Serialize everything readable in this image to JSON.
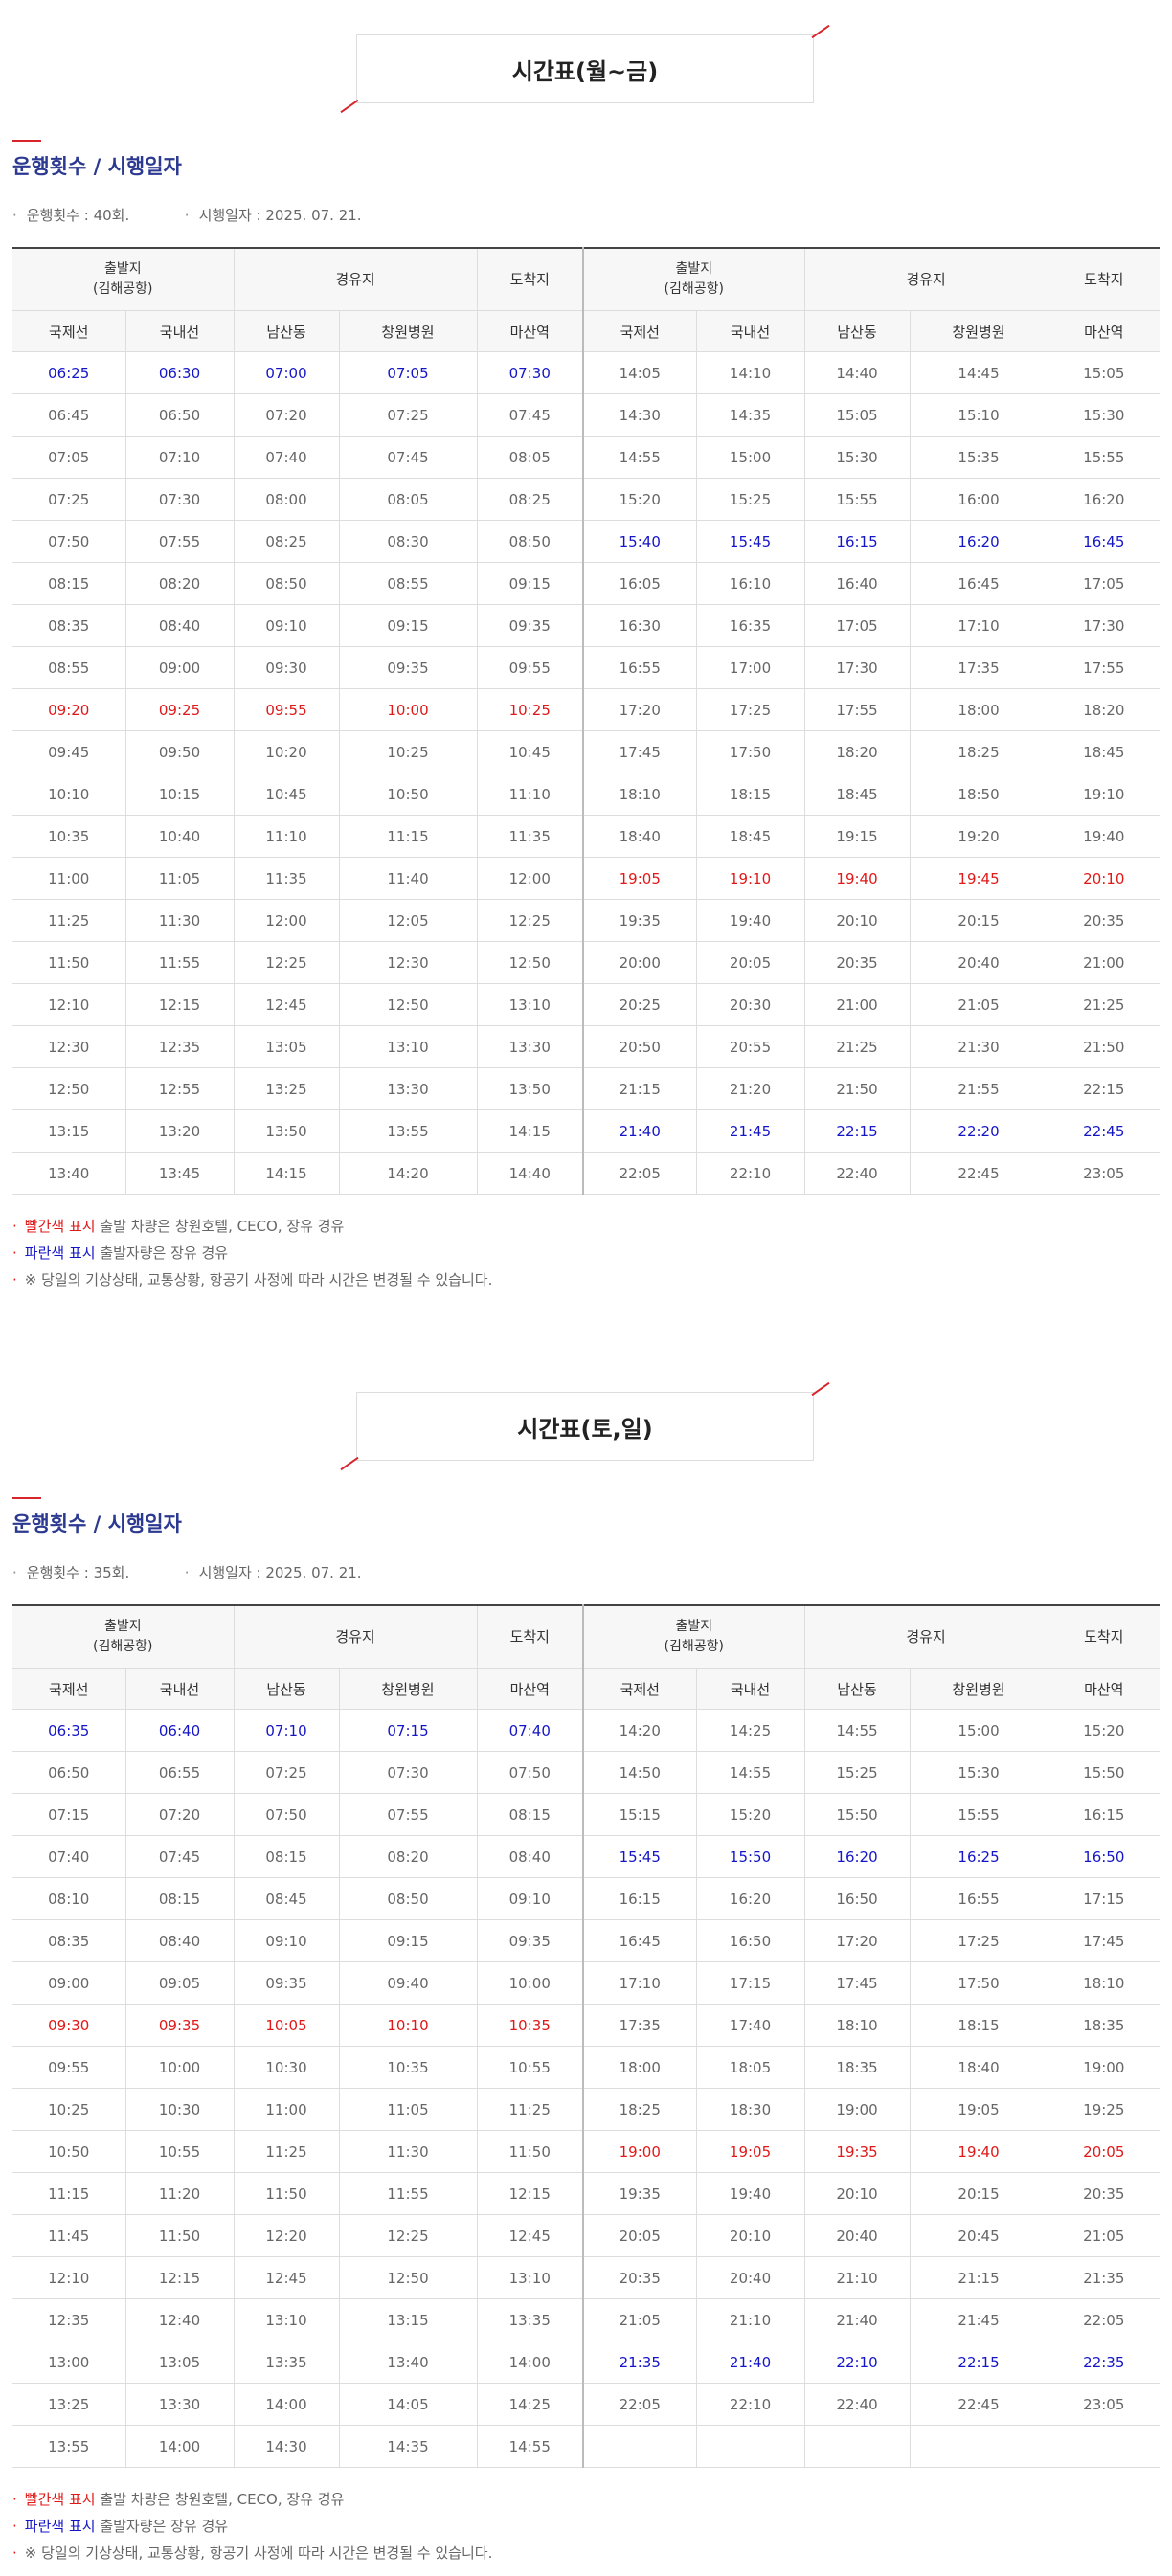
{
  "common": {
    "section_subtitle": "운행횟수 / 시행일자",
    "header_top": [
      "출발지\n(김해공항)",
      "경유지",
      "도착지",
      "출발지\n(김해공항)",
      "경유지",
      "도착지"
    ],
    "header_cols": [
      "국제선",
      "국내선",
      "남산동",
      "창원병원",
      "마산역",
      "국제선",
      "국내선",
      "남산동",
      "창원병원",
      "마산역"
    ],
    "note_red_label": "빨간색 표시",
    "note_red_text": " 출발 차량은 창원호텔, CECO, 장유 경유",
    "note_blue_label": "파란색 표시",
    "note_blue_text": " 출발자량은 장유 경유",
    "note_warn": "※ 당일의 기상상태, 교통상황, 항공기 사정에 따라 시간은 변경될 수 있습니다.",
    "colors": {
      "red": "#e01818",
      "blue": "#1515c8",
      "accent": "#d8252b",
      "subtitle": "#2b3990"
    }
  },
  "weekday": {
    "title": "시간표(월~금)",
    "count": "운행횟수 : 40회.",
    "date": "시행일자 : 2025. 07. 21.",
    "rows": [
      [
        [
          "06:25",
          "06:30",
          "07:00",
          "07:05",
          "07:30"
        ],
        "b",
        [
          "14:05",
          "14:10",
          "14:40",
          "14:45",
          "15:05"
        ],
        ""
      ],
      [
        [
          "06:45",
          "06:50",
          "07:20",
          "07:25",
          "07:45"
        ],
        "",
        [
          "14:30",
          "14:35",
          "15:05",
          "15:10",
          "15:30"
        ],
        ""
      ],
      [
        [
          "07:05",
          "07:10",
          "07:40",
          "07:45",
          "08:05"
        ],
        "",
        [
          "14:55",
          "15:00",
          "15:30",
          "15:35",
          "15:55"
        ],
        ""
      ],
      [
        [
          "07:25",
          "07:30",
          "08:00",
          "08:05",
          "08:25"
        ],
        "",
        [
          "15:20",
          "15:25",
          "15:55",
          "16:00",
          "16:20"
        ],
        ""
      ],
      [
        [
          "07:50",
          "07:55",
          "08:25",
          "08:30",
          "08:50"
        ],
        "",
        [
          "15:40",
          "15:45",
          "16:15",
          "16:20",
          "16:45"
        ],
        "b"
      ],
      [
        [
          "08:15",
          "08:20",
          "08:50",
          "08:55",
          "09:15"
        ],
        "",
        [
          "16:05",
          "16:10",
          "16:40",
          "16:45",
          "17:05"
        ],
        ""
      ],
      [
        [
          "08:35",
          "08:40",
          "09:10",
          "09:15",
          "09:35"
        ],
        "",
        [
          "16:30",
          "16:35",
          "17:05",
          "17:10",
          "17:30"
        ],
        ""
      ],
      [
        [
          "08:55",
          "09:00",
          "09:30",
          "09:35",
          "09:55"
        ],
        "",
        [
          "16:55",
          "17:00",
          "17:30",
          "17:35",
          "17:55"
        ],
        ""
      ],
      [
        [
          "09:20",
          "09:25",
          "09:55",
          "10:00",
          "10:25"
        ],
        "r",
        [
          "17:20",
          "17:25",
          "17:55",
          "18:00",
          "18:20"
        ],
        ""
      ],
      [
        [
          "09:45",
          "09:50",
          "10:20",
          "10:25",
          "10:45"
        ],
        "",
        [
          "17:45",
          "17:50",
          "18:20",
          "18:25",
          "18:45"
        ],
        ""
      ],
      [
        [
          "10:10",
          "10:15",
          "10:45",
          "10:50",
          "11:10"
        ],
        "",
        [
          "18:10",
          "18:15",
          "18:45",
          "18:50",
          "19:10"
        ],
        ""
      ],
      [
        [
          "10:35",
          "10:40",
          "11:10",
          "11:15",
          "11:35"
        ],
        "",
        [
          "18:40",
          "18:45",
          "19:15",
          "19:20",
          "19:40"
        ],
        ""
      ],
      [
        [
          "11:00",
          "11:05",
          "11:35",
          "11:40",
          "12:00"
        ],
        "",
        [
          "19:05",
          "19:10",
          "19:40",
          "19:45",
          "20:10"
        ],
        "r"
      ],
      [
        [
          "11:25",
          "11:30",
          "12:00",
          "12:05",
          "12:25"
        ],
        "",
        [
          "19:35",
          "19:40",
          "20:10",
          "20:15",
          "20:35"
        ],
        ""
      ],
      [
        [
          "11:50",
          "11:55",
          "12:25",
          "12:30",
          "12:50"
        ],
        "",
        [
          "20:00",
          "20:05",
          "20:35",
          "20:40",
          "21:00"
        ],
        ""
      ],
      [
        [
          "12:10",
          "12:15",
          "12:45",
          "12:50",
          "13:10"
        ],
        "",
        [
          "20:25",
          "20:30",
          "21:00",
          "21:05",
          "21:25"
        ],
        ""
      ],
      [
        [
          "12:30",
          "12:35",
          "13:05",
          "13:10",
          "13:30"
        ],
        "",
        [
          "20:50",
          "20:55",
          "21:25",
          "21:30",
          "21:50"
        ],
        ""
      ],
      [
        [
          "12:50",
          "12:55",
          "13:25",
          "13:30",
          "13:50"
        ],
        "",
        [
          "21:15",
          "21:20",
          "21:50",
          "21:55",
          "22:15"
        ],
        ""
      ],
      [
        [
          "13:15",
          "13:20",
          "13:50",
          "13:55",
          "14:15"
        ],
        "",
        [
          "21:40",
          "21:45",
          "22:15",
          "22:20",
          "22:45"
        ],
        "b"
      ],
      [
        [
          "13:40",
          "13:45",
          "14:15",
          "14:20",
          "14:40"
        ],
        "",
        [
          "22:05",
          "22:10",
          "22:40",
          "22:45",
          "23:05"
        ],
        ""
      ]
    ]
  },
  "weekend": {
    "title": "시간표(토,일)",
    "count": "운행횟수 : 35회.",
    "date": "시행일자 : 2025. 07. 21.",
    "rows": [
      [
        [
          "06:35",
          "06:40",
          "07:10",
          "07:15",
          "07:40"
        ],
        "b",
        [
          "14:20",
          "14:25",
          "14:55",
          "15:00",
          "15:20"
        ],
        ""
      ],
      [
        [
          "06:50",
          "06:55",
          "07:25",
          "07:30",
          "07:50"
        ],
        "",
        [
          "14:50",
          "14:55",
          "15:25",
          "15:30",
          "15:50"
        ],
        ""
      ],
      [
        [
          "07:15",
          "07:20",
          "07:50",
          "07:55",
          "08:15"
        ],
        "",
        [
          "15:15",
          "15:20",
          "15:50",
          "15:55",
          "16:15"
        ],
        ""
      ],
      [
        [
          "07:40",
          "07:45",
          "08:15",
          "08:20",
          "08:40"
        ],
        "",
        [
          "15:45",
          "15:50",
          "16:20",
          "16:25",
          "16:50"
        ],
        "b"
      ],
      [
        [
          "08:10",
          "08:15",
          "08:45",
          "08:50",
          "09:10"
        ],
        "",
        [
          "16:15",
          "16:20",
          "16:50",
          "16:55",
          "17:15"
        ],
        ""
      ],
      [
        [
          "08:35",
          "08:40",
          "09:10",
          "09:15",
          "09:35"
        ],
        "",
        [
          "16:45",
          "16:50",
          "17:20",
          "17:25",
          "17:45"
        ],
        ""
      ],
      [
        [
          "09:00",
          "09:05",
          "09:35",
          "09:40",
          "10:00"
        ],
        "",
        [
          "17:10",
          "17:15",
          "17:45",
          "17:50",
          "18:10"
        ],
        ""
      ],
      [
        [
          "09:30",
          "09:35",
          "10:05",
          "10:10",
          "10:35"
        ],
        "r",
        [
          "17:35",
          "17:40",
          "18:10",
          "18:15",
          "18:35"
        ],
        ""
      ],
      [
        [
          "09:55",
          "10:00",
          "10:30",
          "10:35",
          "10:55"
        ],
        "",
        [
          "18:00",
          "18:05",
          "18:35",
          "18:40",
          "19:00"
        ],
        ""
      ],
      [
        [
          "10:25",
          "10:30",
          "11:00",
          "11:05",
          "11:25"
        ],
        "",
        [
          "18:25",
          "18:30",
          "19:00",
          "19:05",
          "19:25"
        ],
        ""
      ],
      [
        [
          "10:50",
          "10:55",
          "11:25",
          "11:30",
          "11:50"
        ],
        "",
        [
          "19:00",
          "19:05",
          "19:35",
          "19:40",
          "20:05"
        ],
        "r"
      ],
      [
        [
          "11:15",
          "11:20",
          "11:50",
          "11:55",
          "12:15"
        ],
        "",
        [
          "19:35",
          "19:40",
          "20:10",
          "20:15",
          "20:35"
        ],
        ""
      ],
      [
        [
          "11:45",
          "11:50",
          "12:20",
          "12:25",
          "12:45"
        ],
        "",
        [
          "20:05",
          "20:10",
          "20:40",
          "20:45",
          "21:05"
        ],
        ""
      ],
      [
        [
          "12:10",
          "12:15",
          "12:45",
          "12:50",
          "13:10"
        ],
        "",
        [
          "20:35",
          "20:40",
          "21:10",
          "21:15",
          "21:35"
        ],
        ""
      ],
      [
        [
          "12:35",
          "12:40",
          "13:10",
          "13:15",
          "13:35"
        ],
        "",
        [
          "21:05",
          "21:10",
          "21:40",
          "21:45",
          "22:05"
        ],
        ""
      ],
      [
        [
          "13:00",
          "13:05",
          "13:35",
          "13:40",
          "14:00"
        ],
        "",
        [
          "21:35",
          "21:40",
          "22:10",
          "22:15",
          "22:35"
        ],
        "b"
      ],
      [
        [
          "13:25",
          "13:30",
          "14:00",
          "14:05",
          "14:25"
        ],
        "",
        [
          "22:05",
          "22:10",
          "22:40",
          "22:45",
          "23:05"
        ],
        ""
      ],
      [
        [
          "13:55",
          "14:00",
          "14:30",
          "14:35",
          "14:55"
        ],
        "",
        [
          "",
          "",
          "",
          "",
          ""
        ],
        ""
      ]
    ]
  }
}
